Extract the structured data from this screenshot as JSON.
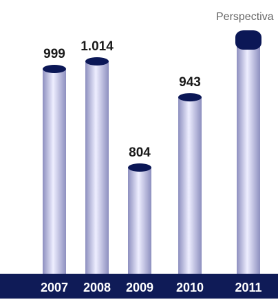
{
  "chart_data": {
    "type": "bar",
    "title": "",
    "xlabel": "",
    "ylabel": "",
    "categories": [
      "2007",
      "2008",
      "2009",
      "2010",
      "2011"
    ],
    "values": [
      999,
      1014,
      804,
      943,
      null
    ],
    "value_labels": [
      "999",
      "1.014",
      "804",
      "943",
      ""
    ],
    "annotation": "Perspectiva",
    "ylim": [
      0,
      1200
    ],
    "grid": false,
    "legend": "none",
    "colors": {
      "axis_band": "#0f1b57",
      "bar_cap": "#0b1756",
      "bar_dark": "#8d8fbf",
      "bar_mid": "#b8bbdc",
      "bar_light": "#eeeeff",
      "value_text": "#1a1a1a",
      "annotation_text": "#666666",
      "tick_text": "#ffffff"
    }
  }
}
